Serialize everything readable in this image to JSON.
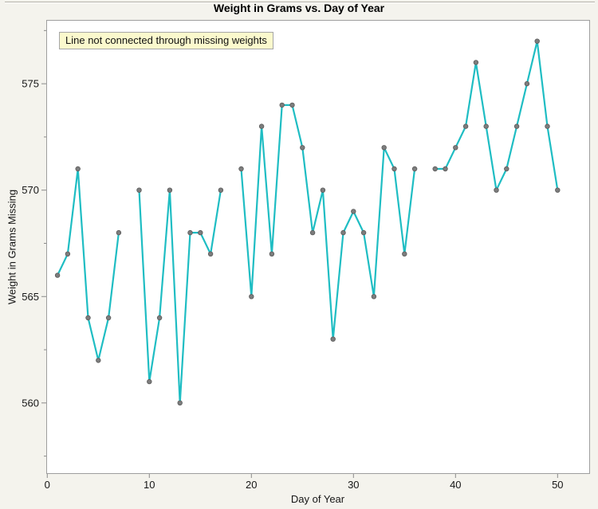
{
  "chart_data": {
    "type": "line",
    "title": "Weight in Grams vs. Day of Year",
    "annotation": "Line not connected through missing weights",
    "xlabel": "Day of Year",
    "ylabel": "Weight in Grams Missing",
    "x": [
      1,
      2,
      3,
      4,
      5,
      6,
      7,
      8,
      9,
      10,
      11,
      12,
      13,
      14,
      15,
      16,
      17,
      18,
      19,
      20,
      21,
      22,
      23,
      24,
      25,
      26,
      27,
      28,
      29,
      30,
      31,
      32,
      33,
      34,
      35,
      36,
      37,
      38,
      39,
      40,
      41,
      42,
      43,
      44,
      45,
      46,
      47,
      48,
      49,
      50
    ],
    "y": [
      566,
      567,
      571,
      564,
      562,
      564,
      568,
      null,
      570,
      561,
      564,
      570,
      560,
      568,
      568,
      567,
      570,
      null,
      571,
      565,
      573,
      567,
      574,
      574,
      572,
      568,
      570,
      563,
      568,
      569,
      568,
      565,
      572,
      571,
      567,
      571,
      null,
      571,
      571,
      572,
      573,
      576,
      573,
      570,
      571,
      573,
      575,
      577,
      573,
      570
    ],
    "missing_days": [
      8,
      18,
      37
    ],
    "xlim": [
      -0.1,
      53.1
    ],
    "ylim": [
      556.7,
      578.0
    ],
    "x_ticks": [
      0,
      10,
      20,
      30,
      40,
      50
    ],
    "y_ticks": [
      560,
      565,
      570,
      575
    ],
    "y_minor_ticks": [
      557.5,
      562.5,
      567.5,
      572.5,
      577.5
    ],
    "grid": false,
    "legend": "none",
    "line_color": "#1fbdc3",
    "marker_color": "#7d7d7d",
    "marker_edge_color": "#5a5a5a",
    "plot_bg": "#ffffff",
    "plot_border": "#9e9e9e",
    "tick_color": "#8a8a8a",
    "annotation_bg": "#fbf9cd",
    "page_bg": "#f4f3ed"
  }
}
